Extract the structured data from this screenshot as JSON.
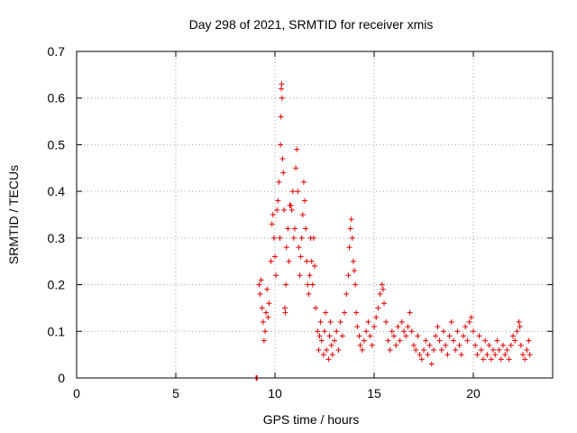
{
  "chart_data": {
    "type": "scatter",
    "title": "Day 298 of 2021, SRMTID for receiver xmis",
    "xlabel": "GPS time / hours",
    "ylabel": "SRMTID / TECUs",
    "xlim": [
      0,
      24
    ],
    "ylim": [
      0,
      0.7
    ],
    "x_ticks": [
      0,
      5,
      10,
      15,
      20
    ],
    "x_tick_labels": [
      "0",
      "5",
      "10",
      "15",
      "20"
    ],
    "y_ticks": [
      0,
      0.1,
      0.2,
      0.3,
      0.4,
      0.5,
      0.6,
      0.7
    ],
    "y_tick_labels": [
      "0",
      "0.1",
      "0.2",
      "0.3",
      "0.4",
      "0.5",
      "0.6",
      "0.7"
    ],
    "grid": true,
    "marker": "+",
    "color": "#e00000",
    "series": [
      {
        "name": "SRMTID",
        "points": [
          [
            9.05,
            0.0
          ],
          [
            9.07,
            0.0
          ],
          [
            9.1,
            0.0
          ],
          [
            9.2,
            0.2
          ],
          [
            9.25,
            0.18
          ],
          [
            9.3,
            0.21
          ],
          [
            9.35,
            0.15
          ],
          [
            9.4,
            0.12
          ],
          [
            9.45,
            0.08
          ],
          [
            9.5,
            0.1
          ],
          [
            9.55,
            0.14
          ],
          [
            9.6,
            0.19
          ],
          [
            9.65,
            0.13
          ],
          [
            9.7,
            0.16
          ],
          [
            9.8,
            0.25
          ],
          [
            9.85,
            0.33
          ],
          [
            9.9,
            0.35
          ],
          [
            9.95,
            0.3
          ],
          [
            10.0,
            0.26
          ],
          [
            10.05,
            0.22
          ],
          [
            10.1,
            0.36
          ],
          [
            10.15,
            0.38
          ],
          [
            10.2,
            0.42
          ],
          [
            10.25,
            0.3
          ],
          [
            10.28,
            0.5
          ],
          [
            10.3,
            0.56
          ],
          [
            10.32,
            0.62
          ],
          [
            10.34,
            0.63
          ],
          [
            10.36,
            0.6
          ],
          [
            10.38,
            0.47
          ],
          [
            10.42,
            0.44
          ],
          [
            10.46,
            0.36
          ],
          [
            10.5,
            0.15
          ],
          [
            10.52,
            0.14
          ],
          [
            10.55,
            0.2
          ],
          [
            10.58,
            0.28
          ],
          [
            10.65,
            0.32
          ],
          [
            10.7,
            0.25
          ],
          [
            10.75,
            0.37
          ],
          [
            10.8,
            0.37
          ],
          [
            10.85,
            0.36
          ],
          [
            10.9,
            0.4
          ],
          [
            10.95,
            0.3
          ],
          [
            11.0,
            0.32
          ],
          [
            11.05,
            0.45
          ],
          [
            11.1,
            0.49
          ],
          [
            11.15,
            0.4
          ],
          [
            11.2,
            0.28
          ],
          [
            11.25,
            0.22
          ],
          [
            11.3,
            0.26
          ],
          [
            11.35,
            0.3
          ],
          [
            11.4,
            0.35
          ],
          [
            11.45,
            0.42
          ],
          [
            11.5,
            0.38
          ],
          [
            11.55,
            0.32
          ],
          [
            11.6,
            0.25
          ],
          [
            11.65,
            0.2
          ],
          [
            11.7,
            0.18
          ],
          [
            11.75,
            0.22
          ],
          [
            11.8,
            0.3
          ],
          [
            11.85,
            0.25
          ],
          [
            11.9,
            0.2
          ],
          [
            11.95,
            0.3
          ],
          [
            12.0,
            0.24
          ],
          [
            12.05,
            0.15
          ],
          [
            12.15,
            0.1
          ],
          [
            12.2,
            0.06
          ],
          [
            12.25,
            0.09
          ],
          [
            12.3,
            0.12
          ],
          [
            12.35,
            0.08
          ],
          [
            12.45,
            0.05
          ],
          [
            12.5,
            0.1
          ],
          [
            12.55,
            0.14
          ],
          [
            12.6,
            0.06
          ],
          [
            12.7,
            0.04
          ],
          [
            12.75,
            0.09
          ],
          [
            12.8,
            0.12
          ],
          [
            12.85,
            0.07
          ],
          [
            12.9,
            0.05
          ],
          [
            13.0,
            0.08
          ],
          [
            13.1,
            0.1
          ],
          [
            13.2,
            0.06
          ],
          [
            13.3,
            0.12
          ],
          [
            13.4,
            0.09
          ],
          [
            13.5,
            0.14
          ],
          [
            13.6,
            0.18
          ],
          [
            13.7,
            0.22
          ],
          [
            13.75,
            0.28
          ],
          [
            13.8,
            0.32
          ],
          [
            13.85,
            0.34
          ],
          [
            13.9,
            0.3
          ],
          [
            13.95,
            0.25
          ],
          [
            14.0,
            0.23
          ],
          [
            14.05,
            0.2
          ],
          [
            14.1,
            0.14
          ],
          [
            14.15,
            0.11
          ],
          [
            14.25,
            0.09
          ],
          [
            14.3,
            0.07
          ],
          [
            14.4,
            0.06
          ],
          [
            14.5,
            0.08
          ],
          [
            14.6,
            0.1
          ],
          [
            14.7,
            0.12
          ],
          [
            14.8,
            0.09
          ],
          [
            14.9,
            0.07
          ],
          [
            15.0,
            0.11
          ],
          [
            15.1,
            0.13
          ],
          [
            15.2,
            0.15
          ],
          [
            15.3,
            0.18
          ],
          [
            15.4,
            0.2
          ],
          [
            15.45,
            0.19
          ],
          [
            15.5,
            0.16
          ],
          [
            15.6,
            0.12
          ],
          [
            15.7,
            0.08
          ],
          [
            15.8,
            0.06
          ],
          [
            15.9,
            0.1
          ],
          [
            16.0,
            0.09
          ],
          [
            16.1,
            0.07
          ],
          [
            16.2,
            0.11
          ],
          [
            16.3,
            0.08
          ],
          [
            16.4,
            0.12
          ],
          [
            16.5,
            0.1
          ],
          [
            16.6,
            0.09
          ],
          [
            16.7,
            0.11
          ],
          [
            16.8,
            0.14
          ],
          [
            16.9,
            0.1
          ],
          [
            17.0,
            0.07
          ],
          [
            17.1,
            0.06
          ],
          [
            17.2,
            0.09
          ],
          [
            17.3,
            0.05
          ],
          [
            17.4,
            0.04
          ],
          [
            17.5,
            0.06
          ],
          [
            17.6,
            0.08
          ],
          [
            17.7,
            0.05
          ],
          [
            17.8,
            0.07
          ],
          [
            17.9,
            0.03
          ],
          [
            18.0,
            0.06
          ],
          [
            18.1,
            0.09
          ],
          [
            18.2,
            0.11
          ],
          [
            18.3,
            0.08
          ],
          [
            18.4,
            0.06
          ],
          [
            18.5,
            0.1
          ],
          [
            18.6,
            0.07
          ],
          [
            18.7,
            0.05
          ],
          [
            18.8,
            0.09
          ],
          [
            18.9,
            0.12
          ],
          [
            19.0,
            0.08
          ],
          [
            19.1,
            0.06
          ],
          [
            19.2,
            0.1
          ],
          [
            19.3,
            0.07
          ],
          [
            19.4,
            0.05
          ],
          [
            19.5,
            0.09
          ],
          [
            19.6,
            0.11
          ],
          [
            19.7,
            0.08
          ],
          [
            19.8,
            0.12
          ],
          [
            19.9,
            0.13
          ],
          [
            20.0,
            0.1
          ],
          [
            20.1,
            0.07
          ],
          [
            20.2,
            0.05
          ],
          [
            20.3,
            0.09
          ],
          [
            20.4,
            0.06
          ],
          [
            20.5,
            0.04
          ],
          [
            20.6,
            0.08
          ],
          [
            20.7,
            0.05
          ],
          [
            20.8,
            0.07
          ],
          [
            20.9,
            0.04
          ],
          [
            21.0,
            0.06
          ],
          [
            21.1,
            0.05
          ],
          [
            21.2,
            0.08
          ],
          [
            21.3,
            0.06
          ],
          [
            21.4,
            0.04
          ],
          [
            21.5,
            0.07
          ],
          [
            21.6,
            0.05
          ],
          [
            21.7,
            0.06
          ],
          [
            21.8,
            0.04
          ],
          [
            21.9,
            0.07
          ],
          [
            22.0,
            0.09
          ],
          [
            22.1,
            0.08
          ],
          [
            22.2,
            0.1
          ],
          [
            22.3,
            0.12
          ],
          [
            22.35,
            0.11
          ],
          [
            22.4,
            0.07
          ],
          [
            22.5,
            0.05
          ],
          [
            22.6,
            0.04
          ],
          [
            22.7,
            0.06
          ],
          [
            22.8,
            0.08
          ],
          [
            22.85,
            0.05
          ]
        ]
      }
    ]
  }
}
